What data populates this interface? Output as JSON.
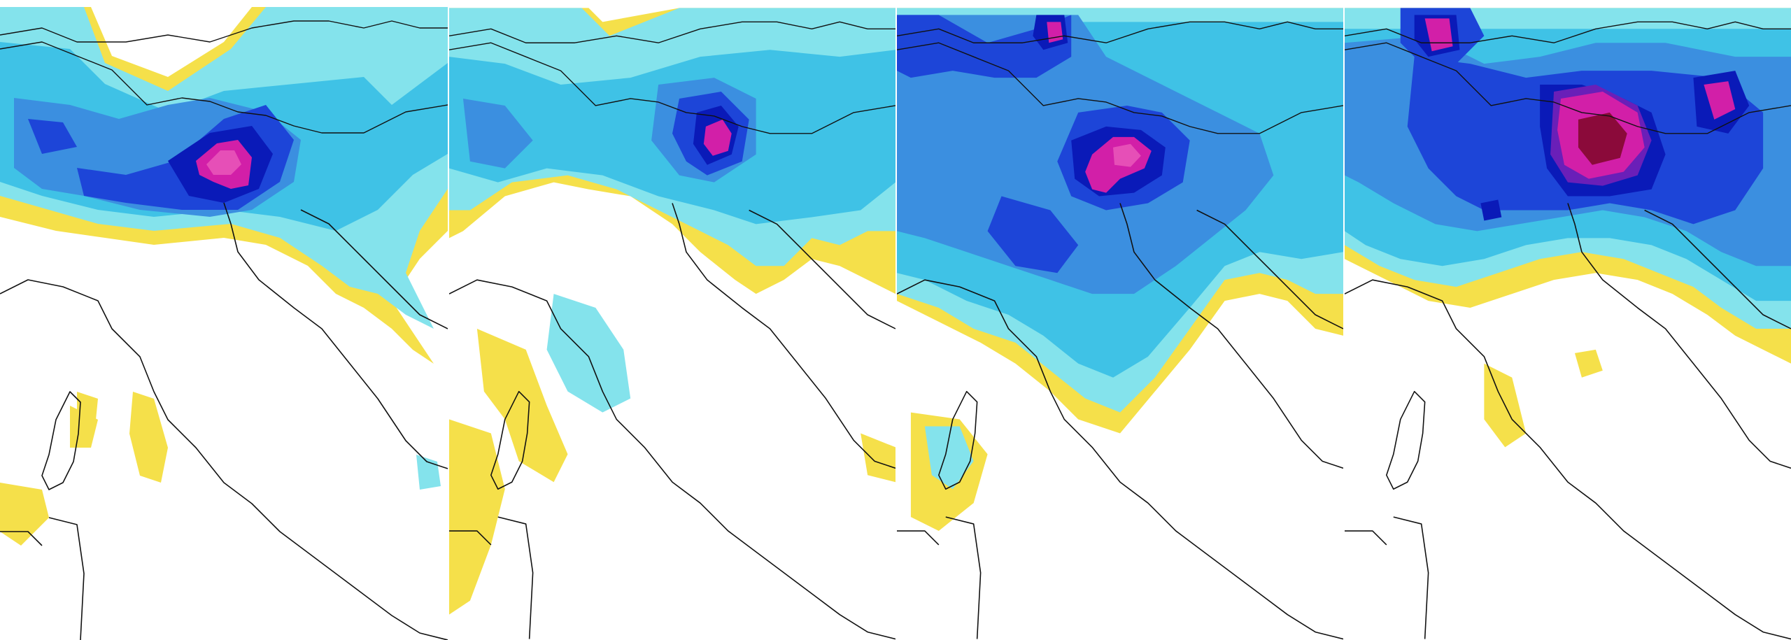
{
  "figure": {
    "panel_count": 4,
    "colors": {
      "yellow": "#f5e04a",
      "lightest_cyan": "#c8f3f5",
      "light_cyan": "#84e3ec",
      "cyan": "#3fc2e6",
      "mid_blue": "#3b8fe0",
      "blue": "#1d45d8",
      "deep_blue": "#0a1ab8",
      "purple": "#6a1fb8",
      "magenta": "#d21fa8",
      "pink": "#e64fb7",
      "maroon": "#8b0a3a"
    },
    "panels": [
      {
        "name": "panel-1",
        "peak_level": "magenta"
      },
      {
        "name": "panel-2",
        "peak_level": "magenta"
      },
      {
        "name": "panel-3",
        "peak_level": "magenta"
      },
      {
        "name": "panel-4",
        "peak_level": "maroon"
      }
    ]
  }
}
